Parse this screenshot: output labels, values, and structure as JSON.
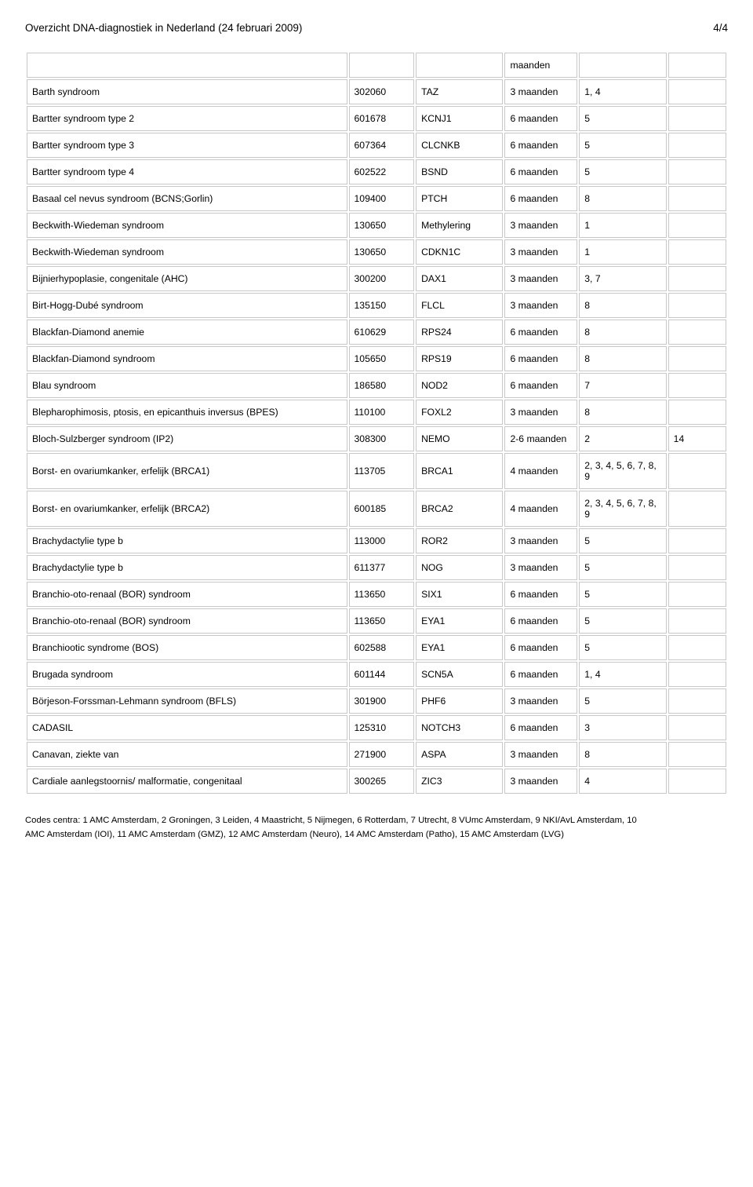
{
  "header": {
    "title": "Overzicht DNA-diagnostiek in Nederland (24 februari 2009)",
    "page": "4/4"
  },
  "topRow": {
    "duration": "maanden"
  },
  "rows": [
    {
      "name": "Barth syndroom",
      "code": "302060",
      "gene": "TAZ",
      "duration": "3 maanden",
      "centers": "1, 4",
      "last": ""
    },
    {
      "name": "Bartter syndroom type 2",
      "code": "601678",
      "gene": "KCNJ1",
      "duration": "6 maanden",
      "centers": "5",
      "last": ""
    },
    {
      "name": "Bartter syndroom type 3",
      "code": "607364",
      "gene": "CLCNKB",
      "duration": "6 maanden",
      "centers": "5",
      "last": ""
    },
    {
      "name": "Bartter syndroom type 4",
      "code": "602522",
      "gene": "BSND",
      "duration": "6 maanden",
      "centers": "5",
      "last": ""
    },
    {
      "name": "Basaal cel nevus syndroom (BCNS;Gorlin)",
      "code": "109400",
      "gene": "PTCH",
      "duration": "6 maanden",
      "centers": "8",
      "last": ""
    },
    {
      "name": "Beckwith-Wiedeman syndroom",
      "code": "130650",
      "gene": "Methylering",
      "duration": "3 maanden",
      "centers": "1",
      "last": ""
    },
    {
      "name": "Beckwith-Wiedeman syndroom",
      "code": "130650",
      "gene": "CDKN1C",
      "duration": "3 maanden",
      "centers": "1",
      "last": ""
    },
    {
      "name": "Bijnierhypoplasie, congenitale (AHC)",
      "code": "300200",
      "gene": "DAX1",
      "duration": "3 maanden",
      "centers": "3, 7",
      "last": ""
    },
    {
      "name": "Birt-Hogg-Dubé syndroom",
      "code": "135150",
      "gene": "FLCL",
      "duration": "3 maanden",
      "centers": "8",
      "last": ""
    },
    {
      "name": "Blackfan-Diamond anemie",
      "code": "610629",
      "gene": "RPS24",
      "duration": "6 maanden",
      "centers": "8",
      "last": ""
    },
    {
      "name": "Blackfan-Diamond syndroom",
      "code": "105650",
      "gene": "RPS19",
      "duration": "6 maanden",
      "centers": "8",
      "last": ""
    },
    {
      "name": "Blau syndroom",
      "code": "186580",
      "gene": "NOD2",
      "duration": "6 maanden",
      "centers": "7",
      "last": ""
    },
    {
      "name": "Blepharophimosis, ptosis, en epicanthuis inversus (BPES)",
      "code": "110100",
      "gene": "FOXL2",
      "duration": "3 maanden",
      "centers": "8",
      "last": ""
    },
    {
      "name": "Bloch-Sulzberger syndroom (IP2)",
      "code": "308300",
      "gene": "NEMO",
      "duration": "2-6 maanden",
      "centers": "2",
      "last": "14"
    },
    {
      "name": "Borst- en ovariumkanker, erfelijk (BRCA1)",
      "code": "113705",
      "gene": "BRCA1",
      "duration": "4 maanden",
      "centers": "2, 3, 4, 5, 6, 7, 8, 9",
      "last": ""
    },
    {
      "name": "Borst- en ovariumkanker, erfelijk (BRCA2)",
      "code": "600185",
      "gene": "BRCA2",
      "duration": "4 maanden",
      "centers": "2, 3, 4, 5, 6, 7, 8, 9",
      "last": ""
    },
    {
      "name": "Brachydactylie type b",
      "code": "113000",
      "gene": "ROR2",
      "duration": "3 maanden",
      "centers": "5",
      "last": ""
    },
    {
      "name": "Brachydactylie type b",
      "code": "611377",
      "gene": "NOG",
      "duration": "3 maanden",
      "centers": "5",
      "last": ""
    },
    {
      "name": "Branchio-oto-renaal (BOR) syndroom",
      "code": "113650",
      "gene": "SIX1",
      "duration": "6 maanden",
      "centers": "5",
      "last": ""
    },
    {
      "name": "Branchio-oto-renaal (BOR) syndroom",
      "code": "113650",
      "gene": "EYA1",
      "duration": "6 maanden",
      "centers": "5",
      "last": ""
    },
    {
      "name": "Branchiootic syndrome (BOS)",
      "code": "602588",
      "gene": "EYA1",
      "duration": "6 maanden",
      "centers": "5",
      "last": ""
    },
    {
      "name": "Brugada syndroom",
      "code": "601144",
      "gene": "SCN5A",
      "duration": "6 maanden",
      "centers": "1, 4",
      "last": ""
    },
    {
      "name": "Börjeson-Forssman-Lehmann syndroom (BFLS)",
      "code": "301900",
      "gene": "PHF6",
      "duration": "3 maanden",
      "centers": "5",
      "last": ""
    },
    {
      "name": "CADASIL",
      "code": "125310",
      "gene": "NOTCH3",
      "duration": "6 maanden",
      "centers": "3",
      "last": ""
    },
    {
      "name": "Canavan, ziekte van",
      "code": "271900",
      "gene": "ASPA",
      "duration": "3 maanden",
      "centers": "8",
      "last": ""
    },
    {
      "name": "Cardiale aanlegstoornis/ malformatie, congenitaal",
      "code": "300265",
      "gene": "ZIC3",
      "duration": "3 maanden",
      "centers": "4",
      "last": ""
    }
  ],
  "footer": {
    "line1": "Codes centra: 1 AMC Amsterdam, 2 Groningen, 3 Leiden, 4 Maastricht, 5 Nijmegen, 6 Rotterdam, 7 Utrecht, 8 VUmc Amsterdam, 9 NKI/AvL Amsterdam, 10",
    "line2": "AMC Amsterdam (IOI), 11 AMC Amsterdam (GMZ), 12 AMC Amsterdam (Neuro), 14 AMC Amsterdam (Patho), 15 AMC Amsterdam (LVG)"
  }
}
